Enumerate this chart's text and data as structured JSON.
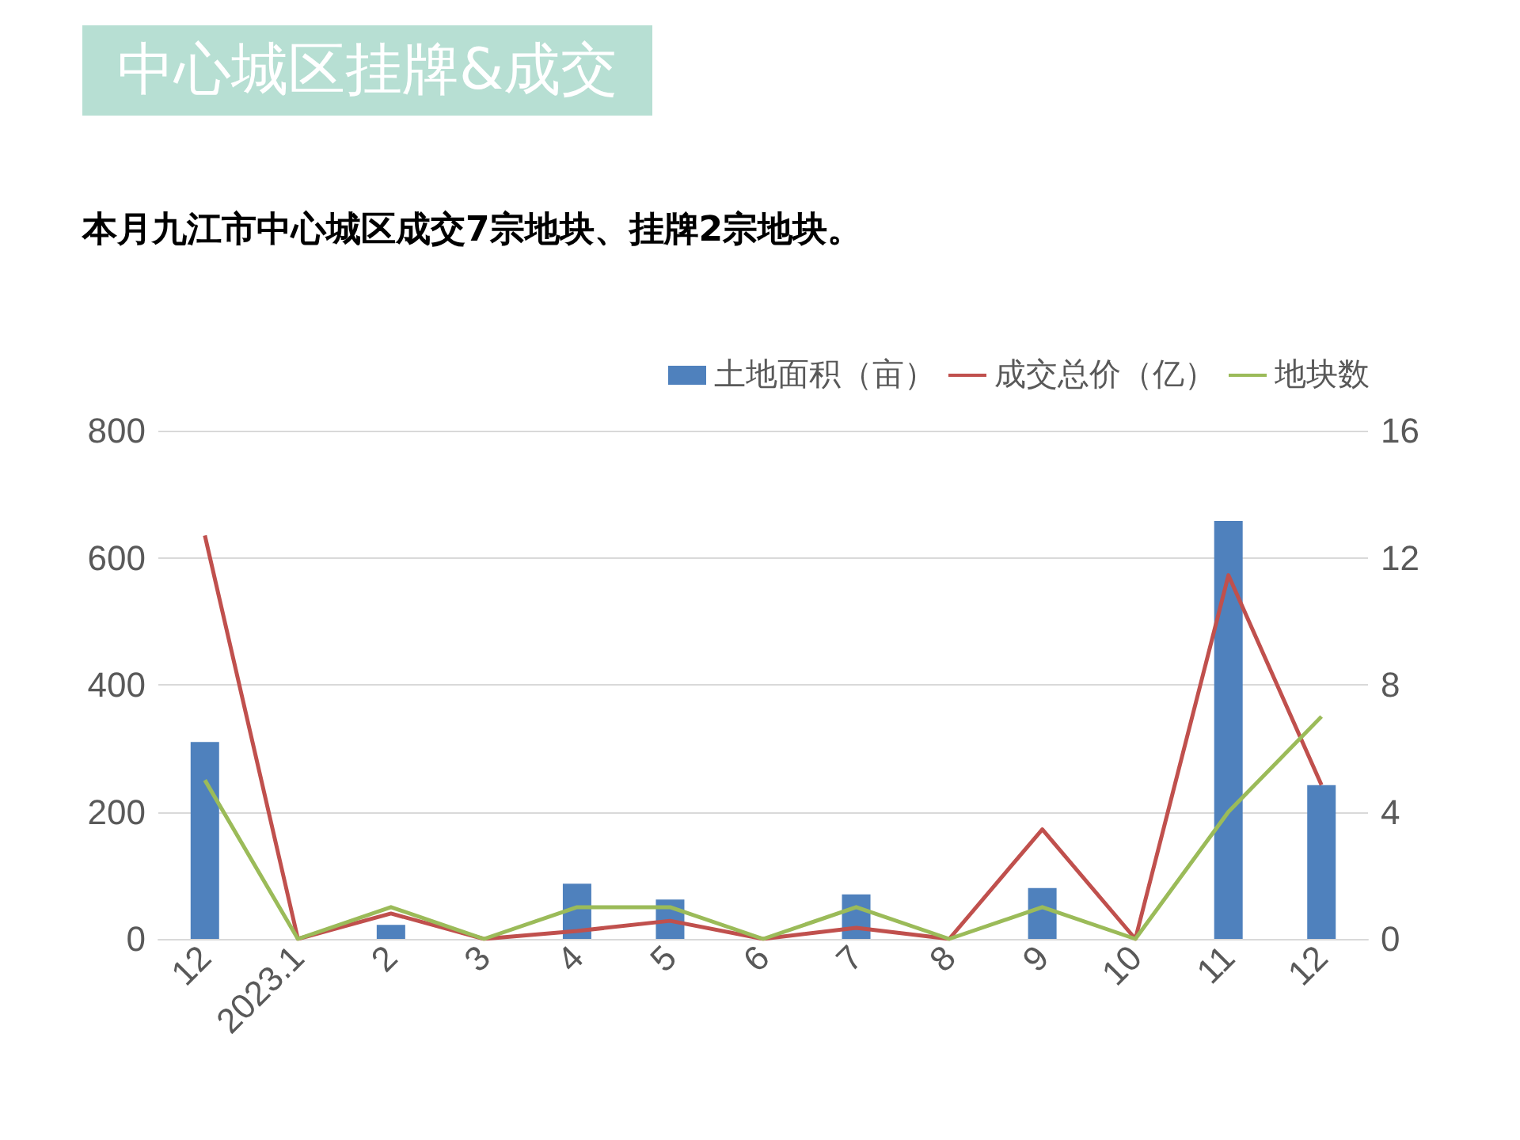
{
  "chart_data": {
    "type": "bar",
    "title": "中心城区挂牌&成交",
    "subtitle": "本月九江市中心城区成交7宗地块、挂牌2宗地块。",
    "categories": [
      "12",
      "2023.1",
      "2",
      "3",
      "4",
      "5",
      "6",
      "7",
      "8",
      "9",
      "10",
      "11",
      "12"
    ],
    "series": [
      {
        "name": "土地面积（亩）",
        "color": "#4f81bd",
        "values": [
          310,
          0,
          22,
          0,
          87,
          62,
          0,
          70,
          0,
          80,
          0,
          658,
          242
        ]
      },
      {
        "name": "成交总价（亿）",
        "type": "line",
        "axis": "y2",
        "color": "#c0504d",
        "values": [
          12.7,
          0,
          0.8,
          0,
          0.25,
          0.57,
          0,
          0.35,
          0,
          3.45,
          0,
          11.45,
          4.85
        ]
      },
      {
        "name": "地块数",
        "type": "line",
        "axis": "y2",
        "color": "#9bbb59",
        "values": [
          5,
          0,
          1,
          0,
          1,
          1,
          0,
          1,
          0,
          1,
          0,
          4,
          7
        ]
      }
    ],
    "ylim": [
      0,
      800
    ],
    "yticks": [
      0,
      200,
      400,
      600,
      800
    ],
    "y2lim": [
      0,
      16
    ],
    "y2ticks": [
      0,
      4,
      8,
      12,
      16
    ],
    "grid": "y",
    "legend": "top right",
    "marker": "none"
  }
}
